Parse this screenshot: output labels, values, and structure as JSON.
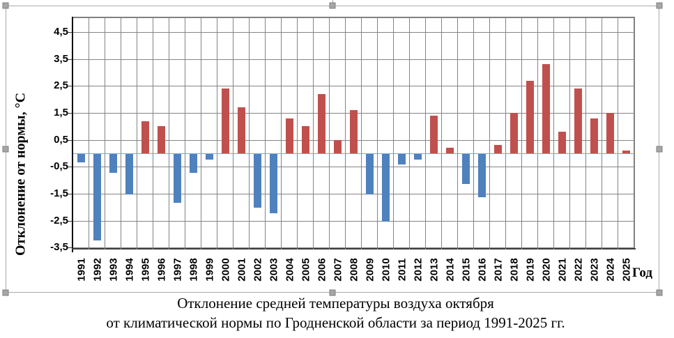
{
  "selection": {
    "handle_positions": [
      "top-left",
      "top-center",
      "top-right",
      "mid-left",
      "mid-right",
      "bottom-left",
      "bottom-center",
      "bottom-right"
    ]
  },
  "chart_data": {
    "type": "bar",
    "title": "Отклонение средней температуры воздуха октября от климатической нормы по Гродненской области за период 1991-2025 гг.",
    "title_line1": "Отклонение средней температуры воздуха октября",
    "title_line2": "от климатической нормы по Гродненской области за период 1991-2025 гг.",
    "ylabel": "Отклонение от нормы, °С",
    "xlabel": "Год",
    "categories": [
      "1991",
      "1992",
      "1993",
      "1994",
      "1995",
      "1996",
      "1997",
      "1998",
      "1999",
      "2000",
      "2001",
      "2002",
      "2003",
      "2004",
      "2005",
      "2006",
      "2007",
      "2008",
      "2009",
      "2010",
      "2011",
      "2012",
      "2013",
      "2014",
      "2015",
      "2016",
      "2017",
      "2018",
      "2019",
      "2020",
      "2021",
      "2022",
      "2023",
      "2024",
      "2025"
    ],
    "values": [
      -0.3,
      -3.2,
      -0.7,
      -1.5,
      1.2,
      1.0,
      -1.8,
      -0.7,
      -0.2,
      2.4,
      1.7,
      -2.0,
      -2.2,
      1.3,
      1.0,
      2.2,
      0.5,
      1.6,
      -1.5,
      -2.5,
      -0.4,
      -0.2,
      1.4,
      0.2,
      -1.1,
      -1.6,
      0.3,
      1.5,
      2.7,
      3.3,
      0.8,
      2.4,
      1.3,
      1.5,
      0.1
    ],
    "ylim": [
      -3.6,
      5.0
    ],
    "ytick_labels": [
      "4,5",
      "3,5",
      "2,5",
      "1,5",
      "0,5",
      "-0,5",
      "-1,5",
      "-2,5",
      "-3,5"
    ],
    "ytick_values": [
      4.5,
      3.5,
      2.5,
      1.5,
      0.5,
      -0.5,
      -1.5,
      -2.5,
      -3.5
    ],
    "grid": true,
    "legend": false,
    "colors": {
      "positive_bar": "#c0504d",
      "negative_bar": "#4f81bd",
      "gridline": "#848484",
      "zero_line": "#7ea6d8",
      "axis": "#000000",
      "selection_handle": "#a6a6a6",
      "selection_border": "#ababab"
    }
  }
}
